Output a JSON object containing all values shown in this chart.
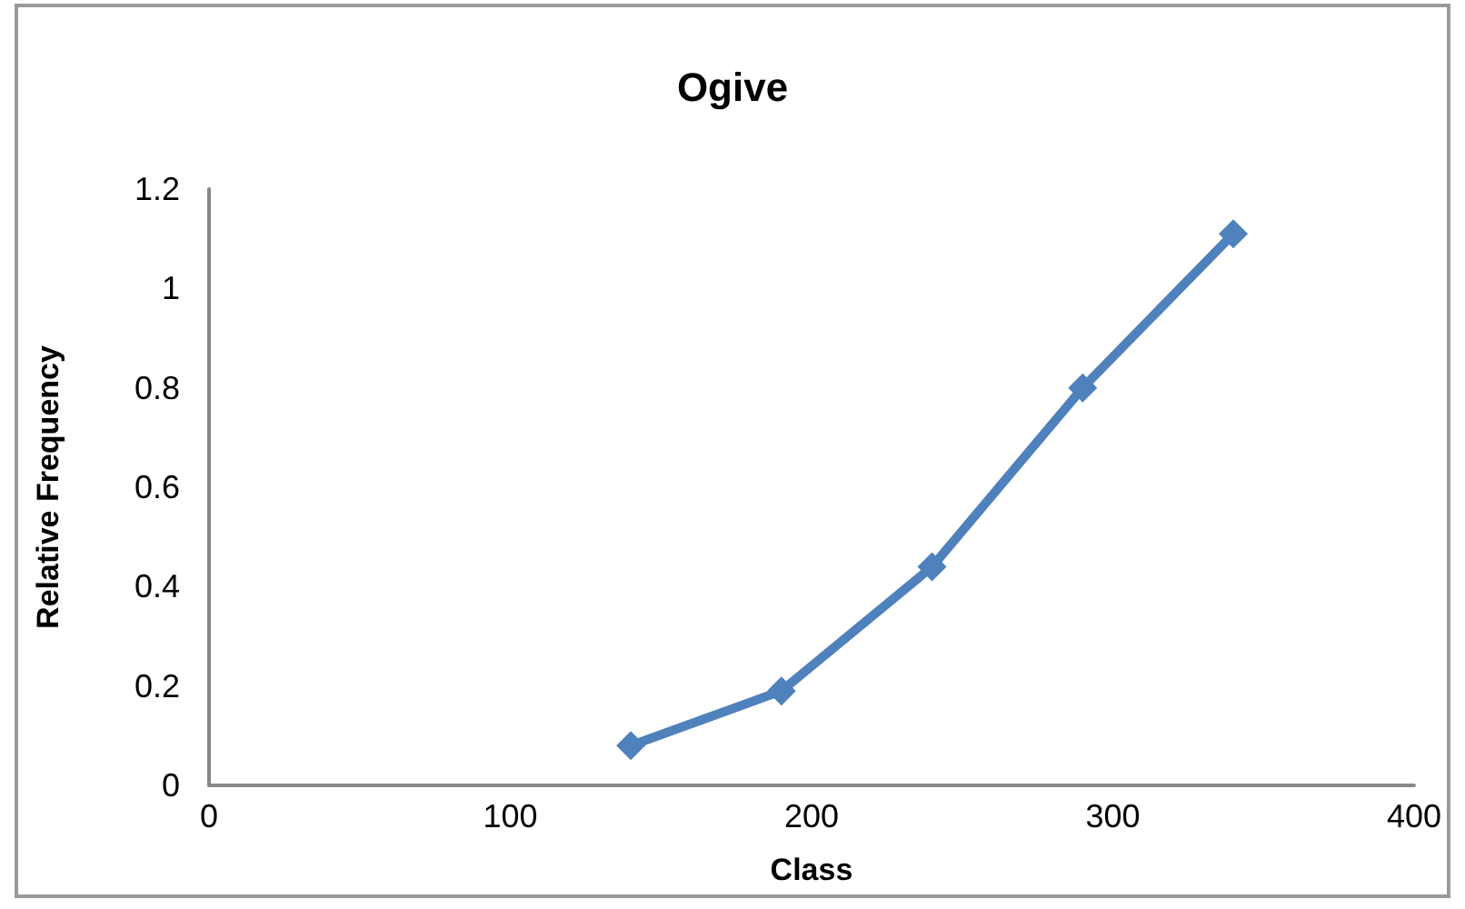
{
  "chart_data": {
    "type": "line",
    "title": "Ogive",
    "xlabel": "Class",
    "ylabel": "Relative Frequency",
    "x": [
      140,
      190,
      240,
      290,
      340
    ],
    "series": [
      {
        "color": "#4f81bd",
        "values": [
          0.08,
          0.19,
          0.44,
          0.8,
          1.11
        ]
      }
    ],
    "xlim": [
      0,
      400
    ],
    "xticks": [
      0,
      100,
      200,
      300,
      400
    ],
    "ylim": [
      0,
      1.2
    ],
    "yticks": [
      0,
      0.2,
      0.4,
      0.6,
      0.8,
      1,
      1.2
    ],
    "grid": false,
    "marker": "diamond",
    "line_style": "solid"
  }
}
